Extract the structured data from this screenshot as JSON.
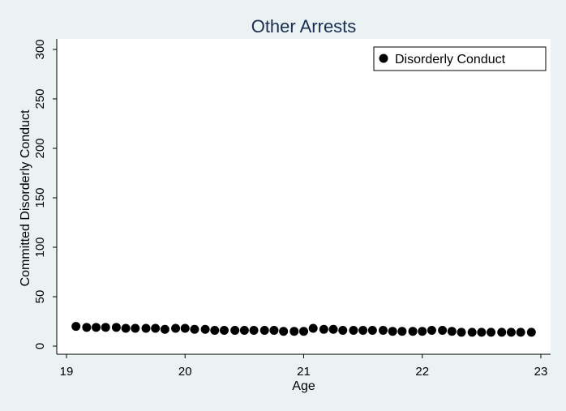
{
  "chart_data": {
    "type": "scatter",
    "title": "Other Arrests",
    "xlabel": "Age",
    "ylabel": "Committed Disorderly Conduct",
    "xlim": [
      19,
      23
    ],
    "ylim": [
      0,
      300
    ],
    "x_ticks": [
      19,
      20,
      21,
      22,
      23
    ],
    "y_ticks": [
      0,
      50,
      100,
      150,
      200,
      250,
      300
    ],
    "grid": false,
    "legend_position": "top-right",
    "series": [
      {
        "name": "Disorderly Conduct",
        "color": "#000000",
        "marker": "circle",
        "x": [
          19.08,
          19.17,
          19.25,
          19.33,
          19.42,
          19.5,
          19.58,
          19.67,
          19.75,
          19.83,
          19.92,
          20.0,
          20.08,
          20.17,
          20.25,
          20.33,
          20.42,
          20.5,
          20.58,
          20.67,
          20.75,
          20.83,
          20.92,
          21.0,
          21.08,
          21.17,
          21.25,
          21.33,
          21.42,
          21.5,
          21.58,
          21.67,
          21.75,
          21.83,
          21.92,
          22.0,
          22.08,
          22.17,
          22.25,
          22.33,
          22.42,
          22.5,
          22.58,
          22.67,
          22.75,
          22.83,
          22.92
        ],
        "y": [
          20,
          19,
          19,
          19,
          19,
          18,
          18,
          18,
          18,
          17,
          18,
          18,
          17,
          17,
          16,
          16,
          16,
          16,
          16,
          16,
          16,
          15,
          15,
          15,
          18,
          17,
          17,
          16,
          16,
          16,
          16,
          16,
          15,
          15,
          15,
          15,
          16,
          16,
          15,
          14,
          14,
          14,
          14,
          14,
          14,
          14,
          14
        ]
      }
    ]
  }
}
